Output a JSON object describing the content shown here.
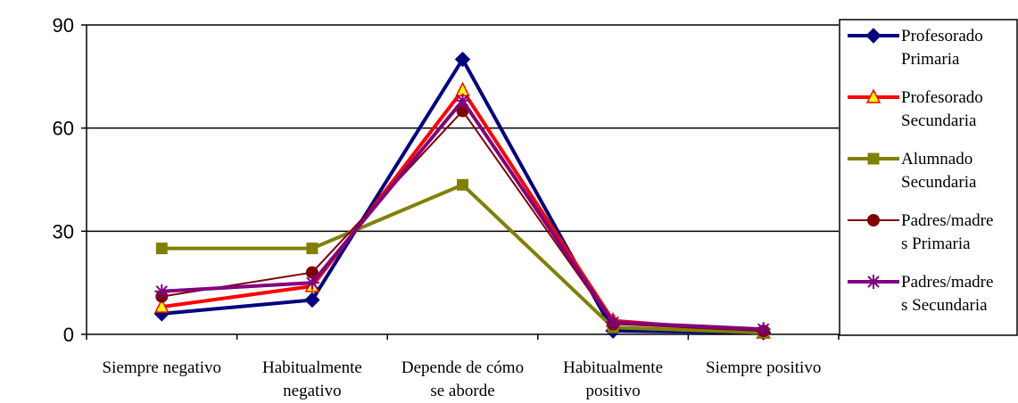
{
  "chart_data": {
    "type": "line",
    "categories": [
      [
        "Siempre negativo"
      ],
      [
        "Habitualmente",
        "negativo"
      ],
      [
        "Depende de cómo",
        "se aborde"
      ],
      [
        "Habitualmente",
        "positivo"
      ],
      [
        "Siempre positivo"
      ]
    ],
    "ylim": [
      0,
      90
    ],
    "yticks": [
      "0",
      "30",
      "60",
      "90"
    ],
    "grid": true,
    "legend_position": "right",
    "series": [
      {
        "name": [
          "Profesorado",
          "Primaria"
        ],
        "color": "#000080",
        "marker": "diamond",
        "values": [
          6,
          10,
          80,
          1,
          0.5
        ]
      },
      {
        "name": [
          "Profesorado",
          "Secundaria"
        ],
        "color": "#ff0000",
        "marker": "triangle",
        "values": [
          8,
          14,
          71,
          4,
          0.5
        ]
      },
      {
        "name": [
          "Alumnado",
          "Secundaria"
        ],
        "color": "#808000",
        "marker": "square",
        "values": [
          25,
          25,
          43.5,
          2,
          0.5
        ]
      },
      {
        "name": [
          "Padres/madre",
          "s Primaria"
        ],
        "color": "#800000",
        "marker": "circle",
        "values": [
          11,
          18,
          65,
          3,
          1
        ]
      },
      {
        "name": [
          "Padres/madre",
          "s Secundaria"
        ],
        "color": "#800080",
        "marker": "star",
        "values": [
          12.5,
          15,
          68,
          3.5,
          1.5
        ]
      }
    ]
  }
}
